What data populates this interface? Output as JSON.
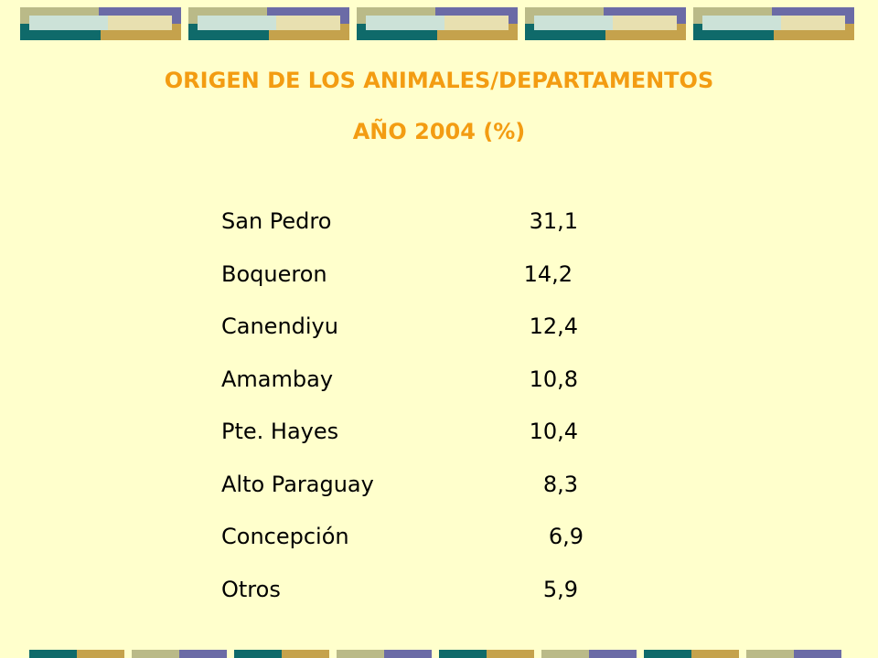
{
  "title": {
    "line1": "ORIGEN DE LOS ANIMALES/DEPARTAMENTOS",
    "line2": "AÑO 2004 (%)"
  },
  "rows": [
    {
      "name": "San Pedro",
      "value": "31,1"
    },
    {
      "name": "Boqueron",
      "value": "14,2"
    },
    {
      "name": "Canendiyu",
      "value": "12,4"
    },
    {
      "name": "Amambay",
      "value": "10,8"
    },
    {
      "name": "Pte. Hayes",
      "value": "10,4"
    },
    {
      "name": "Alto Paraguay",
      "value": "8,3"
    },
    {
      "name": "Concepción",
      "value": "6,9"
    },
    {
      "name": "Otros",
      "value": "5,9"
    }
  ],
  "colors": {
    "background": "#FFFFCC",
    "title": "#F39C12",
    "text": "#000000",
    "deco_olive": "#BABA88",
    "deco_purple": "#6B6BA6",
    "deco_teal": "#0F6A6A",
    "deco_gold": "#C5A24C"
  }
}
